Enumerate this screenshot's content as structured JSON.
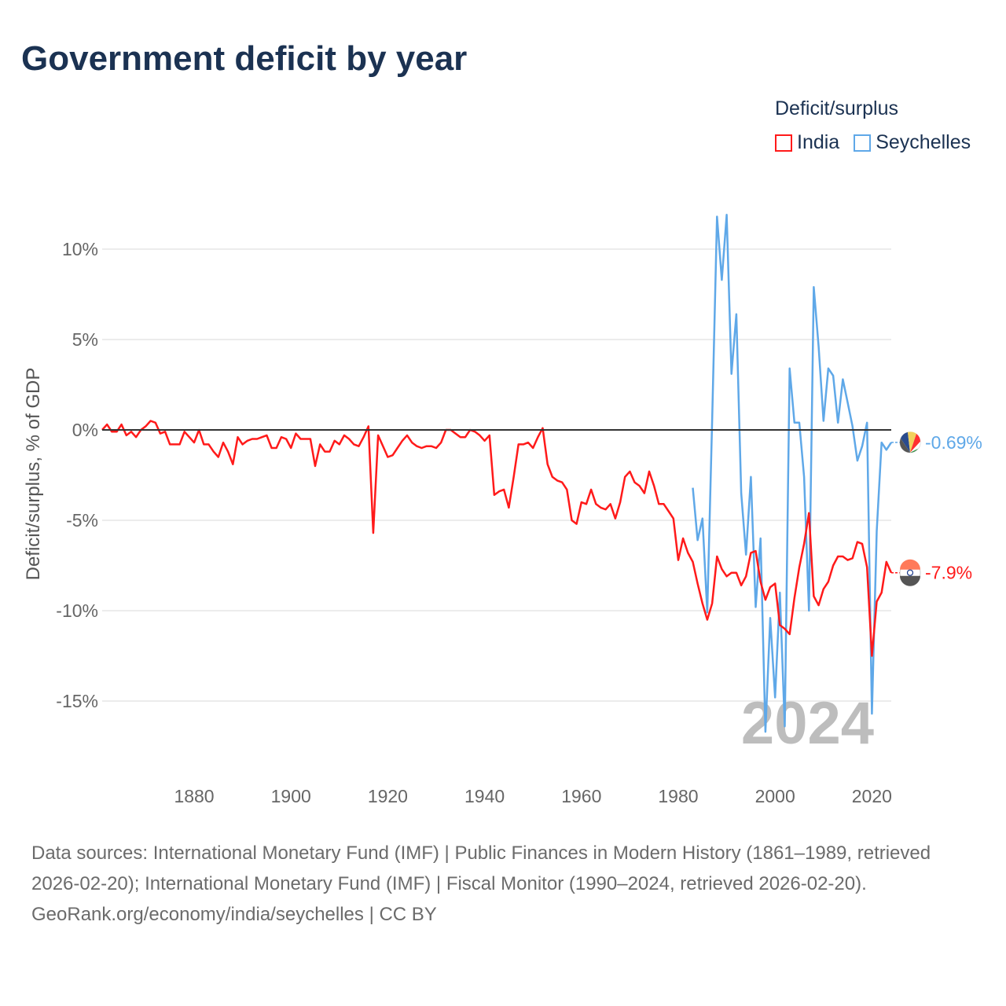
{
  "title": "Government deficit by year",
  "legend": {
    "title": "Deficit/surplus",
    "items": [
      {
        "name": "India",
        "color": "#ff1a1a"
      },
      {
        "name": "Seychelles",
        "color": "#5fa8e8"
      }
    ]
  },
  "footer": {
    "sources": "Data sources: International Monetary Fund (IMF) | Public Finances in Modern History (1861–1989, retrieved 2026-02-20); International Monetary Fund (IMF) | Fiscal Monitor (1990–2024, retrieved 2026-02-20).",
    "credit": "GeoRank.org/economy/india/seychelles | CC BY"
  },
  "chart_data": {
    "type": "line",
    "title": "Government deficit by year",
    "ylabel": "Deficit/surplus, % of GDP",
    "xlabel": "",
    "xlim": [
      1861,
      2024
    ],
    "ylim": [
      -17.5,
      12.5
    ],
    "x_ticks": [
      1880,
      1900,
      1920,
      1940,
      1960,
      1980,
      2000,
      2020
    ],
    "y_ticks": [
      10,
      5,
      0,
      -5,
      -10,
      -15
    ],
    "y_tick_labels": [
      "10%",
      "5%",
      "0%",
      "-5%",
      "-10%",
      "-15%"
    ],
    "grid": true,
    "legend_position": "top-right",
    "year_watermark": "2024",
    "series": [
      {
        "name": "India",
        "color": "#ff1a1a",
        "start_year": 1861,
        "end_label": "-7.9%",
        "values": [
          0,
          0.3,
          -0.1,
          -0.1,
          0.3,
          -0.3,
          -0.1,
          -0.4,
          0,
          0.2,
          0.5,
          0.4,
          -0.2,
          -0.1,
          -0.8,
          -0.8,
          -0.8,
          -0.1,
          -0.4,
          -0.7,
          0,
          -0.8,
          -0.8,
          -1.2,
          -1.5,
          -0.7,
          -1.2,
          -1.9,
          -0.4,
          -0.8,
          -0.6,
          -0.5,
          -0.5,
          -0.4,
          -0.3,
          -1,
          -1,
          -0.4,
          -0.5,
          -1,
          -0.2,
          -0.5,
          -0.5,
          -0.5,
          -2,
          -0.8,
          -1.2,
          -1.2,
          -0.6,
          -0.8,
          -0.3,
          -0.5,
          -0.8,
          -0.9,
          -0.4,
          0.2,
          -5.7,
          -0.3,
          -0.9,
          -1.5,
          -1.4,
          -1,
          -0.6,
          -0.3,
          -0.7,
          -0.9,
          -1,
          -0.9,
          -0.9,
          -1,
          -0.7,
          0,
          0,
          -0.2,
          -0.4,
          -0.4,
          0,
          -0.1,
          -0.3,
          -0.6,
          -0.3,
          -3.6,
          -3.4,
          -3.3,
          -4.3,
          -2.6,
          -0.8,
          -0.8,
          -0.7,
          -1,
          -0.4,
          0.1,
          -1.9,
          -2.6,
          -2.8,
          -2.9,
          -3.3,
          -5.0,
          -5.2,
          -4,
          -4.1,
          -3.3,
          -4.1,
          -4.3,
          -4.4,
          -4.1,
          -4.9,
          -4,
          -2.6,
          -2.3,
          -2.9,
          -3.1,
          -3.5,
          -2.3,
          -3.1,
          -4.1,
          -4.1,
          -4.5,
          -4.9,
          -7.2,
          -6.0,
          -6.8,
          -7.3,
          -8.5,
          -9.6,
          -10.5,
          -9.6,
          -7.0,
          -7.7,
          -8.1,
          -7.9,
          -7.9,
          -8.6,
          -8.1,
          -6.8,
          -6.7,
          -8.4,
          -9.4,
          -8.7,
          -8.5,
          -10.8,
          -11,
          -11.3,
          -9.3,
          -7.6,
          -6.3,
          -4.6,
          -9.2,
          -9.7,
          -8.8,
          -8.4,
          -7.5,
          -7.0,
          -7.0,
          -7.2,
          -7.1,
          -6.2,
          -6.3,
          -7.6,
          -12.5,
          -9.5,
          -9.0,
          -7.3,
          -7.9
        ]
      },
      {
        "name": "Seychelles",
        "color": "#5fa8e8",
        "start_year": 1983,
        "end_label": "-0.69%",
        "values": [
          -3.2,
          -6.1,
          -4.9,
          -10.1,
          0.5,
          11.8,
          8.3,
          11.9,
          3.1,
          6.4,
          -3.5,
          -6.9,
          -2.6,
          -9.8,
          -6.0,
          -16.7,
          -10.4,
          -14.8,
          -9.0,
          -16.4,
          3.4,
          0.4,
          0.4,
          -2.6,
          -10.0,
          7.9,
          4.6,
          0.5,
          3.4,
          3.0,
          0.4,
          2.8,
          1.5,
          0.2,
          -1.7,
          -0.9,
          0.4,
          -15.7,
          -5.6,
          -0.7,
          -1.1,
          -0.69
        ]
      }
    ]
  }
}
